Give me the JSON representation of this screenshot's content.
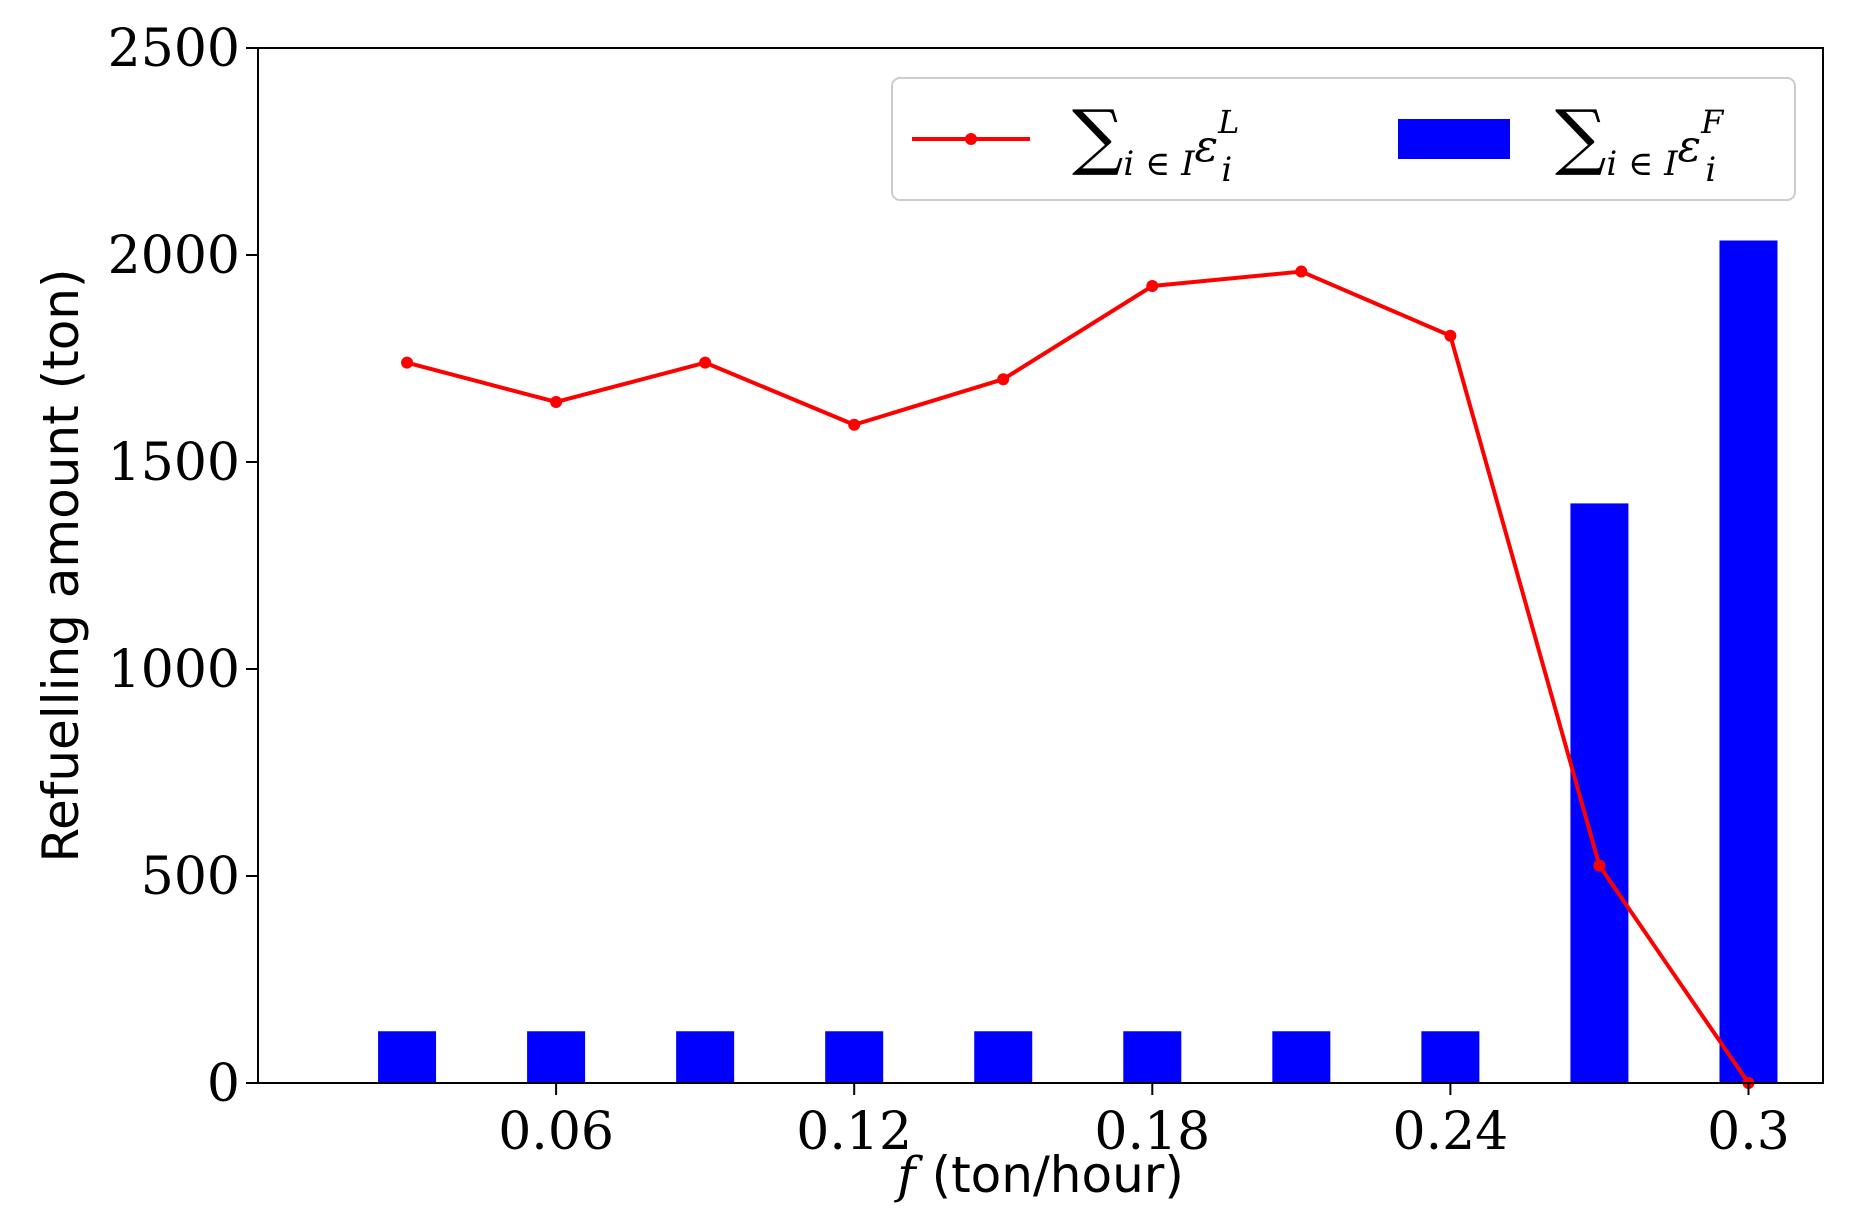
{
  "chart_data": {
    "type": "bar",
    "x_numeric": [
      0.03,
      0.06,
      0.09,
      0.12,
      0.15,
      0.18,
      0.21,
      0.24,
      0.27,
      0.3
    ],
    "x_ticks": [
      "0.06",
      "0.12",
      "0.18",
      "0.24",
      "0.3"
    ],
    "x_tick_values": [
      0.06,
      0.12,
      0.18,
      0.24,
      0.3
    ],
    "y_ticks": [
      "0",
      "500",
      "1000",
      "1500",
      "2000",
      "2500"
    ],
    "y_tick_values": [
      0,
      500,
      1000,
      1500,
      2000,
      2500
    ],
    "xlim": [
      0.0,
      0.315
    ],
    "ylim": [
      0,
      2500
    ],
    "xlabel_symbol": "f",
    "xlabel_text": " (ton/hour)",
    "ylabel": "Refuelling amount (ton)",
    "legend_position": "top-right",
    "series": [
      {
        "kind": "line",
        "color": "#ff0000",
        "legend_parts": {
          "sum": "∑",
          "sub": "i ∈ I",
          "main": "ε",
          "main_sub": "i",
          "sup": "L"
        },
        "values": [
          1740,
          1645,
          1740,
          1590,
          1700,
          1925,
          1960,
          1805,
          525,
          0
        ]
      },
      {
        "kind": "bar",
        "color": "#0000ff",
        "legend_parts": {
          "sum": "∑",
          "sub": "i ∈ I",
          "main": "ε",
          "main_sub": "i",
          "sup": "F"
        },
        "values": [
          125,
          125,
          125,
          125,
          125,
          125,
          125,
          125,
          1400,
          2035
        ]
      }
    ]
  }
}
